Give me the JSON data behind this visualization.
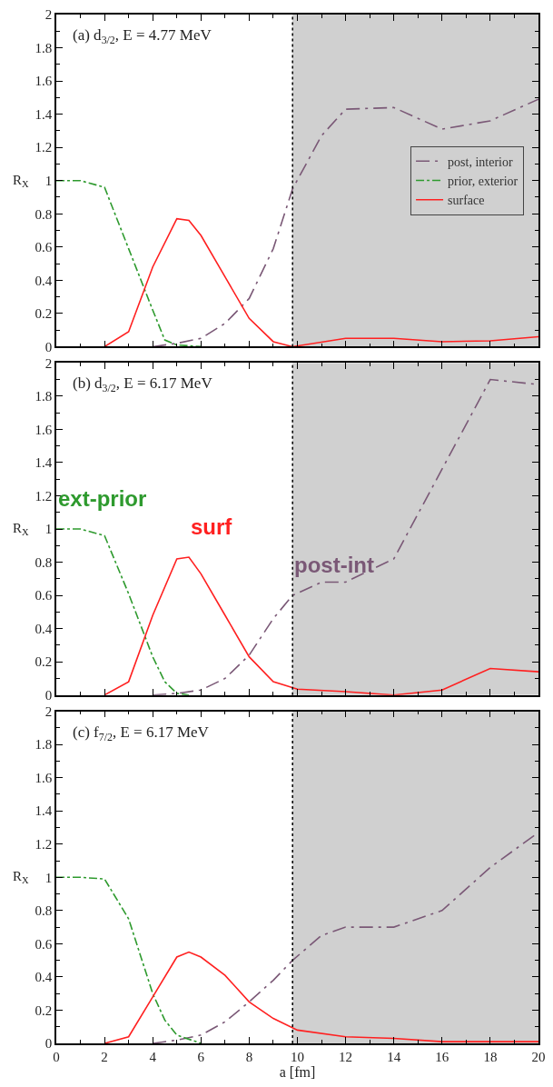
{
  "chart_data": [
    {
      "type": "line",
      "title": "(a) d$_{3/2}$, E = 4.77 MeV",
      "ylabel": "R$_{X}$",
      "xlim": [
        0,
        20
      ],
      "xticks": [
        0,
        2,
        4,
        6,
        8,
        10,
        12,
        14,
        16,
        18,
        20
      ],
      "ylim": [
        0,
        2
      ],
      "yticks": [
        0,
        0.2,
        0.4,
        0.6,
        0.8,
        1,
        1.2,
        1.4,
        1.6,
        1.8,
        2
      ],
      "tick_labels": "y",
      "legend": "right",
      "grid": false,
      "marker": "none",
      "ref_lines": [
        {
          "axis": "x",
          "value": 9.8,
          "label": null,
          "color": "#000000",
          "line_style": "dotted"
        }
      ],
      "bands": [
        {
          "axis": "x",
          "from": 9.8,
          "to": 20,
          "label": null,
          "color": "#d0d0d0"
        }
      ],
      "series": [
        {
          "name": "post, interior",
          "color": "#7a5876",
          "line_style": "dashed",
          "x": [
            4,
            5,
            6,
            7,
            8,
            9,
            9.8,
            11,
            12,
            14,
            16,
            18,
            20
          ],
          "values": [
            0,
            0.02,
            0.05,
            0.14,
            0.29,
            0.59,
            0.95,
            1.27,
            1.43,
            1.44,
            1.31,
            1.36,
            1.49
          ]
        },
        {
          "name": "prior, exterior",
          "color": "#2e9a2e",
          "line_style": "dotted",
          "x": [
            0,
            1,
            2,
            3,
            4,
            4.5,
            5,
            6
          ],
          "values": [
            1,
            1,
            0.96,
            0.59,
            0.22,
            0.04,
            0.01,
            0
          ]
        },
        {
          "name": "surface",
          "color": "#ff2020",
          "line_style": "solid",
          "x": [
            2,
            3,
            4,
            5,
            5.5,
            6,
            7,
            8,
            9,
            9.8,
            12,
            14,
            16,
            18,
            20
          ],
          "values": [
            0,
            0.09,
            0.48,
            0.77,
            0.76,
            0.67,
            0.42,
            0.17,
            0.03,
            0,
            0.05,
            0.05,
            0.03,
            0.035,
            0.06
          ]
        }
      ]
    },
    {
      "type": "line",
      "title": "(b) d$_{3/2}$, E = 6.17 MeV",
      "ylabel": "R$_{X}$",
      "xlim": [
        0,
        20
      ],
      "xticks": [
        0,
        2,
        4,
        6,
        8,
        10,
        12,
        14,
        16,
        18,
        20
      ],
      "ylim": [
        0,
        2
      ],
      "yticks": [
        0,
        0.2,
        0.4,
        0.6,
        0.8,
        1,
        1.2,
        1.4,
        1.6,
        1.8,
        2
      ],
      "tick_labels": "y",
      "grid": false,
      "marker": "none",
      "ref_lines": [
        {
          "axis": "x",
          "value": 9.8,
          "label": null,
          "color": "#000000",
          "line_style": "dotted"
        }
      ],
      "bands": [
        {
          "axis": "x",
          "from": 9.8,
          "to": 20,
          "label": null,
          "color": "#d0d0d0"
        }
      ],
      "series": [
        {
          "name": "post-int",
          "color": "#7a5876",
          "line_style": "dashed",
          "x": [
            4,
            5,
            6,
            7,
            8,
            9,
            9.8,
            11,
            12,
            14,
            16,
            18,
            20
          ],
          "values": [
            0,
            0.01,
            0.03,
            0.1,
            0.24,
            0.46,
            0.6,
            0.68,
            0.68,
            0.82,
            1.36,
            1.9,
            1.87
          ]
        },
        {
          "name": "ext-prior",
          "color": "#2e9a2e",
          "line_style": "dotted",
          "x": [
            0,
            1,
            2,
            3,
            4,
            4.5,
            5,
            5.5
          ],
          "values": [
            1,
            1,
            0.96,
            0.61,
            0.23,
            0.08,
            0.01,
            0
          ]
        },
        {
          "name": "surf",
          "color": "#ff2020",
          "line_style": "solid",
          "x": [
            2,
            3,
            4,
            5,
            5.5,
            6,
            7,
            8,
            9,
            10,
            12,
            14,
            16,
            18,
            20
          ],
          "values": [
            0,
            0.08,
            0.48,
            0.82,
            0.83,
            0.73,
            0.48,
            0.23,
            0.08,
            0.035,
            0.02,
            0,
            0.03,
            0.16,
            0.14
          ]
        }
      ]
    },
    {
      "type": "line",
      "title": "(c) f$_{7/2}$, E = 6.17 MeV",
      "xlabel": "a [fm]",
      "ylabel": "R$_{X}$",
      "xlim": [
        0,
        20
      ],
      "xticks": [
        0,
        2,
        4,
        6,
        8,
        10,
        12,
        14,
        16,
        18,
        20
      ],
      "ylim": [
        0,
        2
      ],
      "yticks": [
        0,
        0.2,
        0.4,
        0.6,
        0.8,
        1,
        1.2,
        1.4,
        1.6,
        1.8,
        2
      ],
      "grid": false,
      "marker": "none",
      "ref_lines": [
        {
          "axis": "x",
          "value": 9.8,
          "label": null,
          "color": "#000000",
          "line_style": "dotted"
        }
      ],
      "bands": [
        {
          "axis": "x",
          "from": 9.8,
          "to": 20,
          "label": null,
          "color": "#d0d0d0"
        }
      ],
      "series": [
        {
          "color": "#7a5876",
          "line_style": "dashed",
          "x": [
            4,
            5,
            6,
            7,
            8,
            9,
            9.8,
            11,
            12,
            14,
            16,
            18,
            20
          ],
          "values": [
            0,
            0.02,
            0.05,
            0.13,
            0.25,
            0.38,
            0.5,
            0.65,
            0.7,
            0.7,
            0.8,
            1.06,
            1.27
          ]
        },
        {
          "color": "#2e9a2e",
          "line_style": "dotted",
          "x": [
            0,
            1,
            2,
            3,
            4,
            4.5,
            5,
            6
          ],
          "values": [
            1,
            1,
            0.99,
            0.75,
            0.3,
            0.14,
            0.05,
            0
          ]
        },
        {
          "color": "#ff2020",
          "line_style": "solid",
          "x": [
            2,
            3,
            4,
            5,
            5.5,
            6,
            7,
            8,
            9,
            10,
            12,
            14,
            16,
            18,
            20
          ],
          "values": [
            0,
            0.04,
            0.28,
            0.52,
            0.55,
            0.52,
            0.41,
            0.25,
            0.15,
            0.08,
            0.04,
            0.03,
            0.01,
            0.01,
            0.01
          ]
        }
      ]
    }
  ]
}
